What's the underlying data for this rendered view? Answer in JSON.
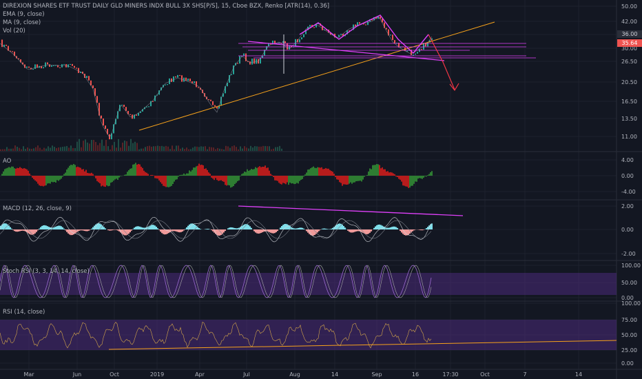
{
  "title": "DIREXION SHARES ETF TRUST DAILY GLD MINERS INDX BULL 3X SHS[P/S], 15, Cboe BZX, Renko [ATR(14), 0.36]",
  "main_legend": [
    "EMA (9, close)",
    "MA (9, close)",
    "Vol (20)"
  ],
  "price_axis": [
    "50.00",
    "42.00",
    "36.00",
    "30.00",
    "26.50",
    "20.50",
    "16.50",
    "13.50",
    "11.00"
  ],
  "price_badges": {
    "upper": "36.00",
    "current": "35.64"
  },
  "panes": {
    "ao": {
      "label": "AO",
      "ticks": [
        "4.00",
        "0.00",
        "-4.00"
      ]
    },
    "macd": {
      "label": "MACD (12, 26, close, 9)",
      "ticks": [
        "2.00",
        "0.00",
        "-2.00"
      ]
    },
    "stoch": {
      "label": "Stoch RSI (3, 3, 14, 14, close)",
      "ticks": [
        "100.00",
        "50.00",
        "0.00"
      ]
    },
    "rsi": {
      "label": "RSI (14, close)",
      "ticks": [
        "100.00",
        "75.00",
        "50.00",
        "25.00",
        "0.00"
      ]
    }
  },
  "time_axis": [
    "Mar",
    "Jun",
    "Oct",
    "2019",
    "Apr",
    "Jul",
    "Aug",
    "14",
    "Sep",
    "16",
    "17:30",
    "Oct",
    "7",
    "14"
  ],
  "colors": {
    "background": "#131722",
    "grid": "#1e222d",
    "up": "#26a69a",
    "down": "#ef5350",
    "magenta": "#e040fb",
    "orange": "#f7a21b",
    "projection": "#f23645",
    "ao_up": "#2e7d32",
    "ao_down": "#b71c1c",
    "band": "#4a2a7a"
  }
}
